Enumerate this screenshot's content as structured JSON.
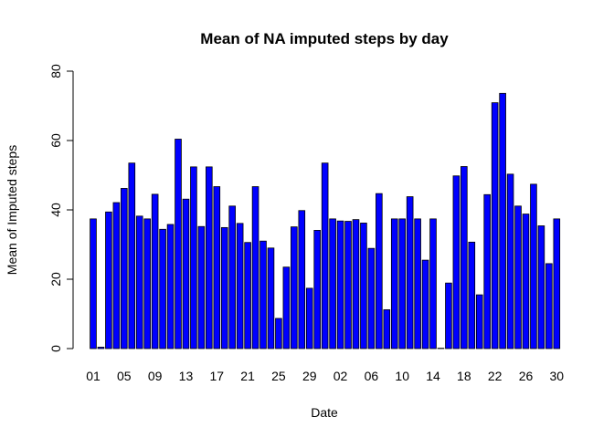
{
  "chart_data": {
    "type": "bar",
    "title": "Mean of NA imputed steps by day",
    "xlabel": "Date",
    "ylabel": "Mean of Imputed steps",
    "ylim": [
      0,
      80
    ],
    "yticks": [
      0,
      20,
      40,
      60,
      80
    ],
    "bar_color": "#0000ff",
    "grid": false,
    "categories": [
      "01",
      "02",
      "03",
      "04",
      "05",
      "06",
      "07",
      "08",
      "09",
      "10",
      "11",
      "12",
      "13",
      "14",
      "15",
      "16",
      "17",
      "18",
      "19",
      "20",
      "21",
      "22",
      "23",
      "24",
      "25",
      "26",
      "27",
      "28",
      "29",
      "30",
      "31",
      "01",
      "02",
      "03",
      "04",
      "05",
      "06",
      "07",
      "08",
      "09",
      "10",
      "11",
      "12",
      "13",
      "14",
      "15",
      "16",
      "17",
      "18",
      "19",
      "20",
      "21",
      "22",
      "23",
      "24",
      "25",
      "26",
      "27",
      "28",
      "29",
      "30"
    ],
    "tick_labels_shown": [
      "01",
      "05",
      "09",
      "13",
      "17",
      "21",
      "25",
      "29",
      "02",
      "06",
      "10",
      "14",
      "18",
      "22",
      "26",
      "30"
    ],
    "values": [
      37.4,
      0.4,
      39.4,
      42.1,
      46.2,
      53.5,
      38.2,
      37.4,
      44.5,
      34.4,
      35.8,
      60.4,
      43.1,
      52.4,
      35.2,
      52.4,
      46.7,
      34.9,
      41.1,
      36.1,
      30.6,
      46.7,
      31.0,
      29.0,
      8.7,
      23.5,
      35.1,
      39.8,
      17.4,
      34.1,
      53.5,
      37.4,
      36.8,
      36.7,
      37.2,
      36.2,
      28.9,
      44.7,
      11.2,
      37.4,
      37.4,
      43.8,
      37.4,
      25.5,
      37.4,
      0.1,
      18.9,
      49.8,
      52.5,
      30.7,
      15.5,
      44.4,
      70.9,
      73.6,
      50.3,
      41.1,
      38.8,
      47.4,
      35.4,
      24.5,
      37.4
    ]
  }
}
